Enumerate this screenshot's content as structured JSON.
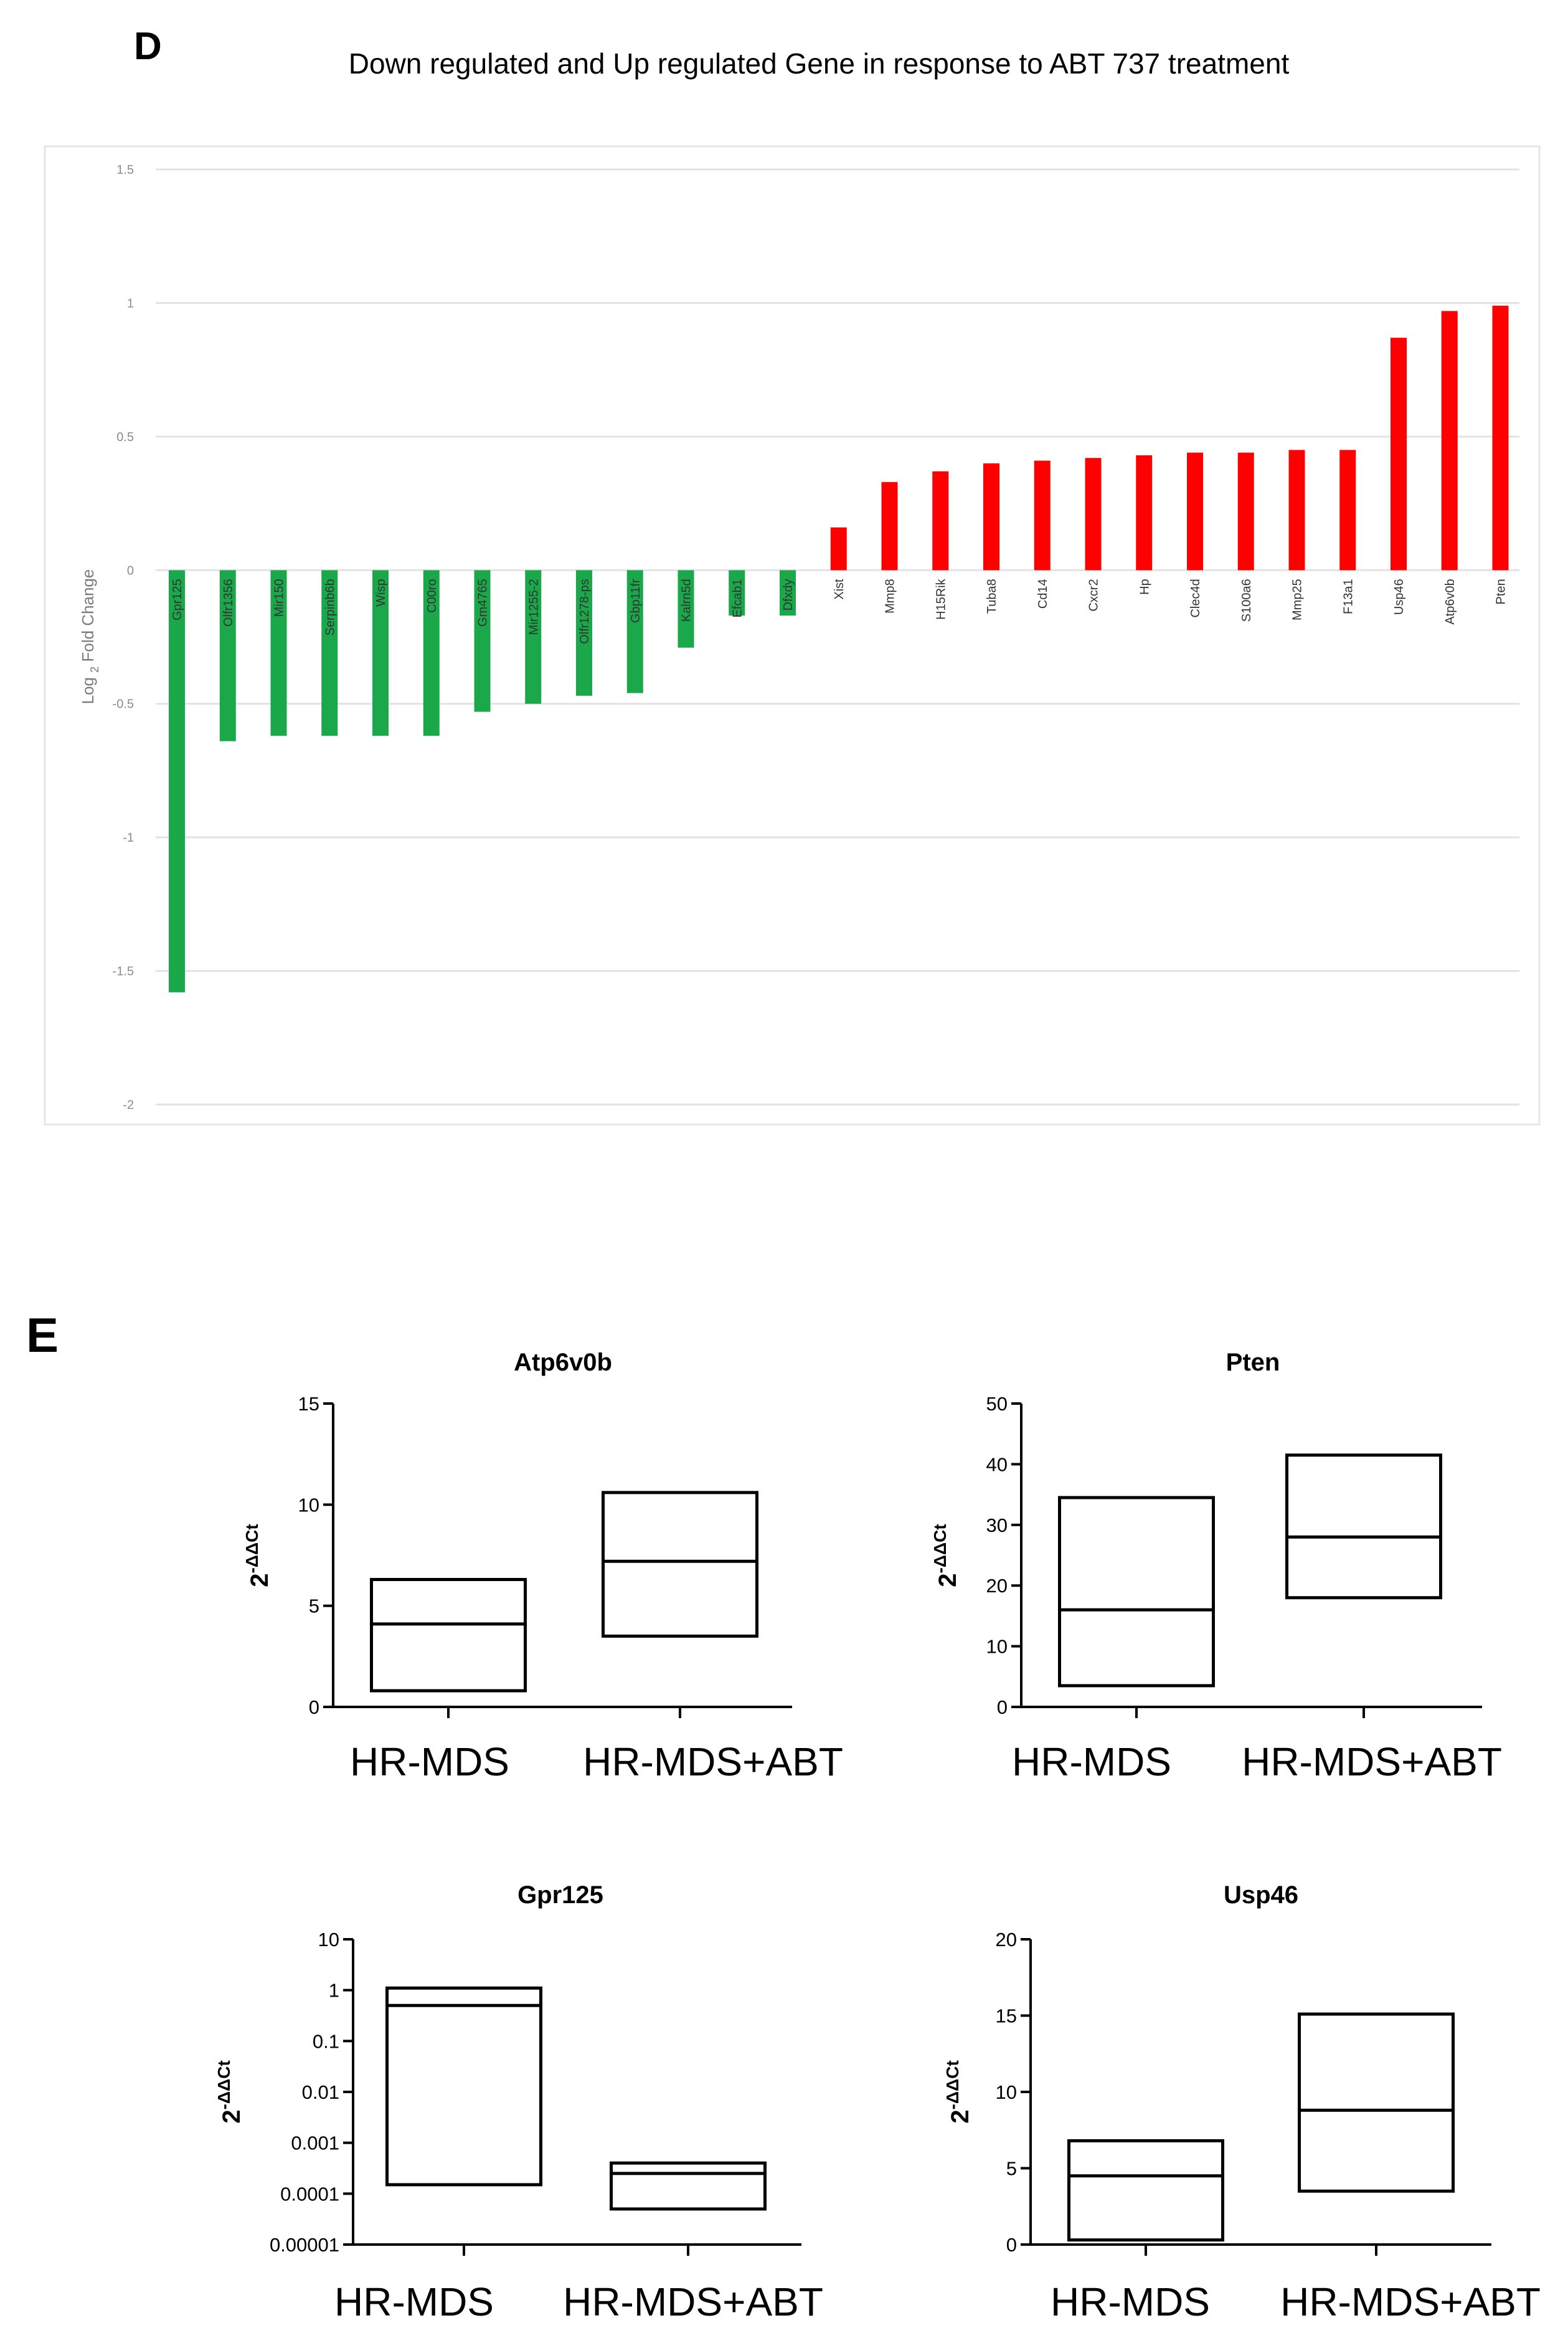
{
  "panel_d": {
    "letter": "D",
    "title": "Down regulated and Up regulated Gene in response to ABT 737 treatment"
  },
  "panel_e": {
    "letter": "E"
  },
  "chart_data": [
    {
      "type": "bar",
      "title": "Down regulated and Up regulated Gene in response to ABT 737 treatment",
      "xlabel": "",
      "ylabel": "Log 2 Fold Change",
      "ylabel_main": "Log",
      "ylabel_sub": "2",
      "ylabel_rest": "Fold Change",
      "ylim": [
        -2,
        1.5
      ],
      "yticks": [
        1.5,
        1,
        0.5,
        0,
        -0.5,
        -1,
        -1.5,
        -2
      ],
      "ytick_labels": [
        "1.5",
        "1",
        "0.5",
        "0",
        "-0.5",
        "-1",
        "-1.5",
        "-2"
      ],
      "grid": true,
      "colors": {
        "down": "#1aa84a",
        "up": "#ff0000"
      },
      "categories": [
        "Gpr125",
        "Olfr1356",
        "Mir150",
        "Serpinb6b",
        "Wisp",
        "C00ro",
        "Gm4765",
        "Mir1255-2",
        "Olfr1278-ps",
        "Gbp11fr",
        "Kalrn5d",
        "Efcab1",
        "Dfxdy",
        "Xist",
        "Mmp8",
        "H15Rik",
        "Tuba8",
        "Cd14",
        "Cxcr2",
        "Hp",
        "Clec4d",
        "S100a6",
        "Mmp25",
        "F13a1",
        "Usp46",
        "Atp6v0b",
        "Pten"
      ],
      "values": [
        -1.58,
        -0.64,
        -0.62,
        -0.62,
        -0.62,
        -0.62,
        -0.53,
        -0.5,
        -0.47,
        -0.46,
        -0.29,
        -0.17,
        -0.17,
        0.16,
        0.33,
        0.37,
        0.4,
        0.41,
        0.42,
        0.43,
        0.44,
        0.44,
        0.45,
        0.45,
        0.87,
        0.97,
        0.99
      ]
    },
    {
      "type": "box",
      "title": "Atp6v0b",
      "ylabel": "2-ΔΔCt",
      "ylabel_base": "2",
      "ylabel_exp": "-ΔΔCt",
      "scale": "linear",
      "ylim": [
        0,
        15
      ],
      "yticks": [
        0,
        5,
        10,
        15
      ],
      "ytick_labels": [
        "0",
        "5",
        "10",
        "15"
      ],
      "categories": [
        "HR-MDS",
        "HR-MDS+ABT"
      ],
      "boxes": [
        {
          "min": 0.8,
          "median": 4.1,
          "max": 6.3
        },
        {
          "min": 3.5,
          "median": 7.2,
          "max": 10.6
        }
      ]
    },
    {
      "type": "box",
      "title": "Pten",
      "ylabel": "2-ΔΔCt",
      "ylabel_base": "2",
      "ylabel_exp": "-ΔΔCt",
      "scale": "linear",
      "ylim": [
        0,
        50
      ],
      "yticks": [
        0,
        10,
        20,
        30,
        40,
        50
      ],
      "ytick_labels": [
        "0",
        "10",
        "20",
        "30",
        "40",
        "50"
      ],
      "categories": [
        "HR-MDS",
        "HR-MDS+ABT"
      ],
      "boxes": [
        {
          "min": 3.5,
          "median": 16,
          "max": 34.5
        },
        {
          "min": 18,
          "median": 28,
          "max": 41.5
        }
      ]
    },
    {
      "type": "box",
      "title": "Gpr125",
      "ylabel": "2-ΔΔCt",
      "ylabel_base": "2",
      "ylabel_exp": "-ΔΔCt",
      "scale": "log",
      "ylim": [
        1e-05,
        10
      ],
      "yticks": [
        10,
        1,
        0.1,
        0.01,
        0.001,
        0.0001,
        1e-05
      ],
      "ytick_labels": [
        "10",
        "1",
        "0.1",
        "0.01",
        "0.001",
        "0.0001",
        "0.00001"
      ],
      "categories": [
        "HR-MDS",
        "HR-MDS+ABT"
      ],
      "boxes": [
        {
          "min": 0.00015,
          "median": 0.5,
          "max": 1.1
        },
        {
          "min": 5e-05,
          "median": 0.00025,
          "max": 0.0004
        }
      ]
    },
    {
      "type": "box",
      "title": "Usp46",
      "ylabel": "2-ΔΔCt",
      "ylabel_base": "2",
      "ylabel_exp": "-ΔΔCt",
      "scale": "linear",
      "ylim": [
        0,
        20
      ],
      "yticks": [
        0,
        5,
        10,
        15,
        20
      ],
      "ytick_labels": [
        "0",
        "5",
        "10",
        "15",
        "20"
      ],
      "categories": [
        "HR-MDS",
        "HR-MDS+ABT"
      ],
      "boxes": [
        {
          "min": 0.3,
          "median": 4.5,
          "max": 6.8
        },
        {
          "min": 3.5,
          "median": 8.8,
          "max": 15.1
        }
      ]
    }
  ]
}
